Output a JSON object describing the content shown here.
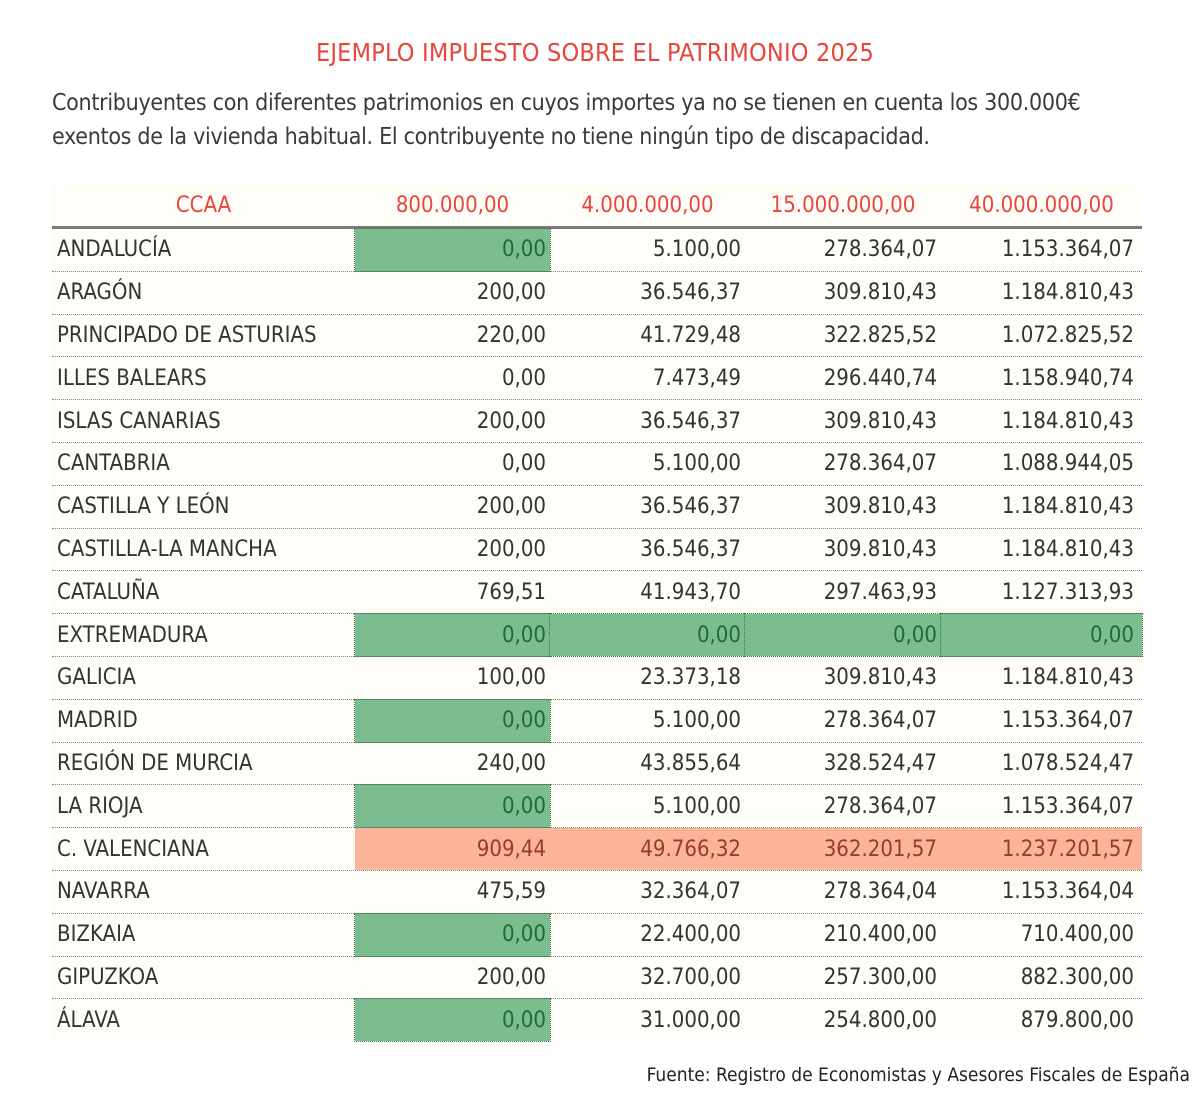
{
  "title": "EJEMPLO IMPUESTO SOBRE EL PATRIMONIO 2025",
  "subtitle": "Contribuyentes con diferentes patrimonios en cuyos importes ya no se tienen en cuenta los 300.000€ exentos de la vivienda habitual. El contribuyente no tiene ningún tipo de discapacidad.",
  "colors": {
    "accent": "#e8453c",
    "highlight_zero": "#7bbd8e",
    "highlight_max": "#f9b49a"
  },
  "table": {
    "headers": [
      "CCAA",
      "800.000,00",
      "4.000.000,00",
      "15.000.000,00",
      "40.000.000,00"
    ],
    "rows": [
      {
        "name": "ANDALUCÍA",
        "values": [
          "0,00",
          "5.100,00",
          "278.364,07",
          "1.153.364,07"
        ],
        "highlight": [
          "green",
          "",
          "",
          ""
        ]
      },
      {
        "name": "ARAGÓN",
        "values": [
          "200,00",
          "36.546,37",
          "309.810,43",
          "1.184.810,43"
        ],
        "highlight": [
          "",
          "",
          "",
          ""
        ]
      },
      {
        "name": "PRINCIPADO DE ASTURIAS",
        "values": [
          "220,00",
          "41.729,48",
          "322.825,52",
          "1.072.825,52"
        ],
        "highlight": [
          "",
          "",
          "",
          ""
        ]
      },
      {
        "name": "ILLES BALEARS",
        "values": [
          "0,00",
          "7.473,49",
          "296.440,74",
          "1.158.940,74"
        ],
        "highlight": [
          "",
          "",
          "",
          ""
        ]
      },
      {
        "name": "ISLAS CANARIAS",
        "values": [
          "200,00",
          "36.546,37",
          "309.810,43",
          "1.184.810,43"
        ],
        "highlight": [
          "",
          "",
          "",
          ""
        ]
      },
      {
        "name": "CANTABRIA",
        "values": [
          "0,00",
          "5.100,00",
          "278.364,07",
          "1.088.944,05"
        ],
        "highlight": [
          "",
          "",
          "",
          ""
        ]
      },
      {
        "name": "CASTILLA Y LEÓN",
        "values": [
          "200,00",
          "36.546,37",
          "309.810,43",
          "1.184.810,43"
        ],
        "highlight": [
          "",
          "",
          "",
          ""
        ]
      },
      {
        "name": "CASTILLA-LA MANCHA",
        "values": [
          "200,00",
          "36.546,37",
          "309.810,43",
          "1.184.810,43"
        ],
        "highlight": [
          "",
          "",
          "",
          ""
        ]
      },
      {
        "name": "CATALUÑA",
        "values": [
          "769,51",
          "41.943,70",
          "297.463,93",
          "1.127.313,93"
        ],
        "highlight": [
          "",
          "",
          "",
          ""
        ]
      },
      {
        "name": "EXTREMADURA",
        "values": [
          "0,00",
          "0,00",
          "0,00",
          "0,00"
        ],
        "highlight": [
          "green",
          "green",
          "green",
          "green"
        ]
      },
      {
        "name": "GALICIA",
        "values": [
          "100,00",
          "23.373,18",
          "309.810,43",
          "1.184.810,43"
        ],
        "highlight": [
          "",
          "",
          "",
          ""
        ]
      },
      {
        "name": "MADRID",
        "values": [
          "0,00",
          "5.100,00",
          "278.364,07",
          "1.153.364,07"
        ],
        "highlight": [
          "green",
          "",
          "",
          ""
        ]
      },
      {
        "name": "REGIÓN DE MURCIA",
        "values": [
          "240,00",
          "43.855,64",
          "328.524,47",
          "1.078.524,47"
        ],
        "highlight": [
          "",
          "",
          "",
          ""
        ]
      },
      {
        "name": "LA RIOJA",
        "values": [
          "0,00",
          "5.100,00",
          "278.364,07",
          "1.153.364,07"
        ],
        "highlight": [
          "green",
          "",
          "",
          ""
        ]
      },
      {
        "name": "C. VALENCIANA",
        "values": [
          "909,44",
          "49.766,32",
          "362.201,57",
          "1.237.201,57"
        ],
        "highlight": [
          "salmon",
          "salmon",
          "salmon",
          "salmon"
        ]
      },
      {
        "name": "NAVARRA",
        "values": [
          "475,59",
          "32.364,07",
          "278.364,04",
          "1.153.364,04"
        ],
        "highlight": [
          "",
          "",
          "",
          ""
        ]
      },
      {
        "name": "BIZKAIA",
        "values": [
          "0,00",
          "22.400,00",
          "210.400,00",
          "710.400,00"
        ],
        "highlight": [
          "green",
          "",
          "",
          ""
        ]
      },
      {
        "name": "GIPUZKOA",
        "values": [
          "200,00",
          "32.700,00",
          "257.300,00",
          "882.300,00"
        ],
        "highlight": [
          "",
          "",
          "",
          ""
        ]
      },
      {
        "name": "ÁLAVA",
        "values": [
          "0,00",
          "31.000,00",
          "254.800,00",
          "879.800,00"
        ],
        "highlight": [
          "green",
          "",
          "",
          ""
        ]
      }
    ]
  },
  "source": "Fuente: Registro de Economistas y Asesores Fiscales de España"
}
